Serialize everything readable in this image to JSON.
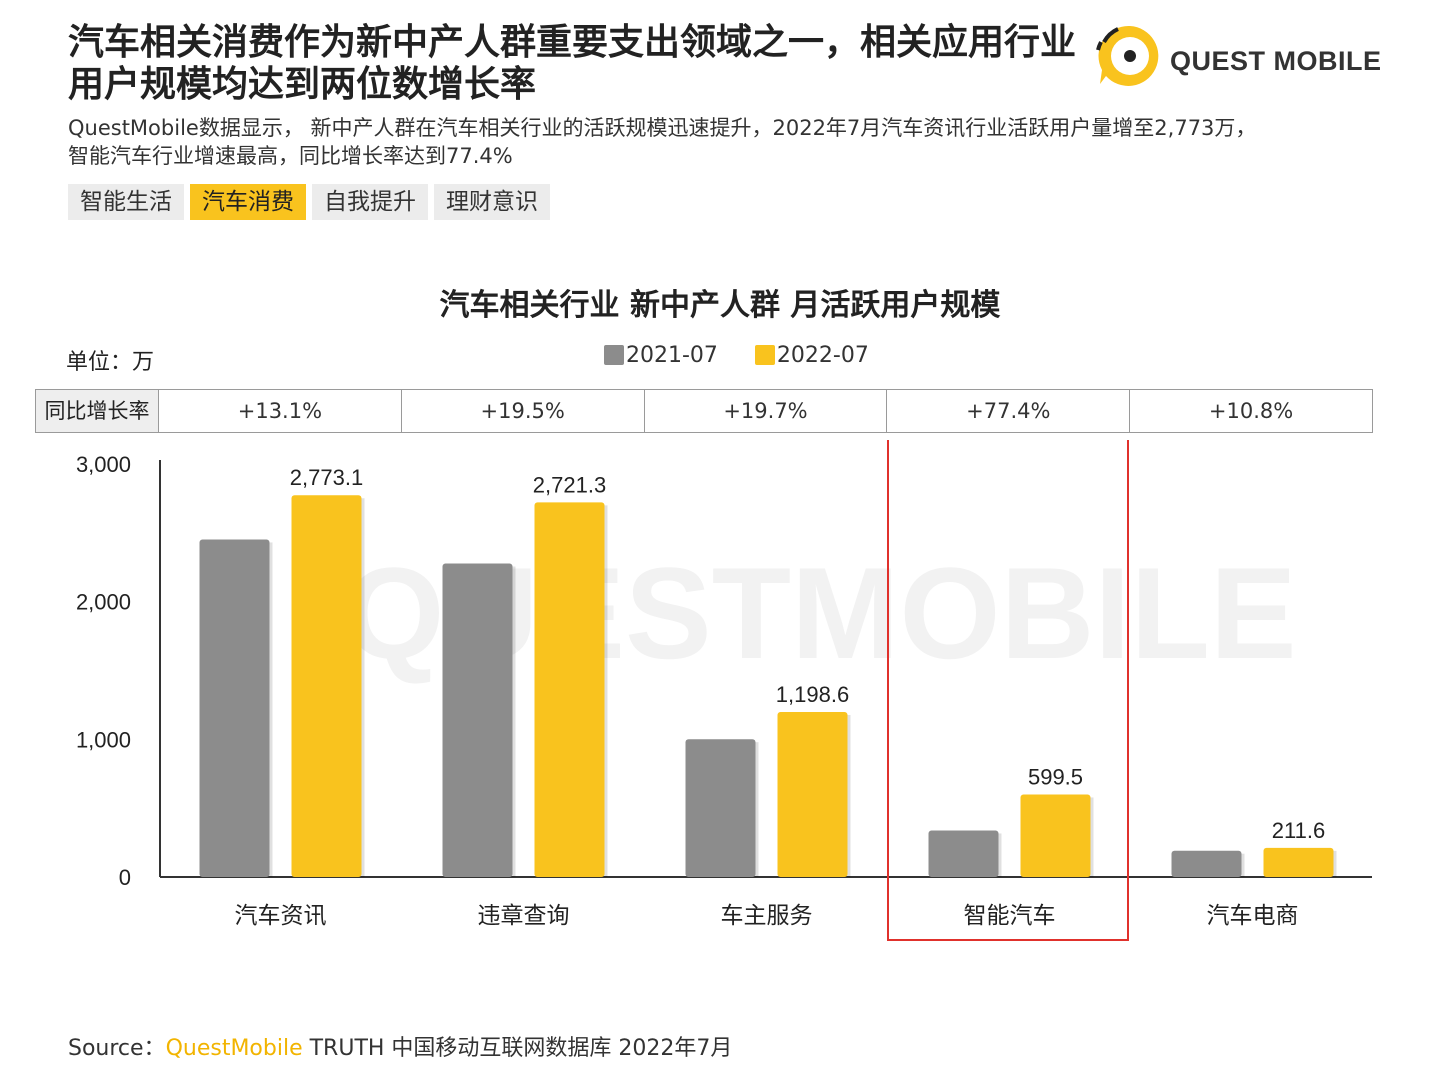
{
  "header": {
    "headline_line1": "汽车相关消费作为新中产人群重要支出领域之一，相关应用行业",
    "headline_line2": "用户规模均达到两位数增长率",
    "subtitle_line1": "QuestMobile数据显示， 新中产人群在汽车相关行业的活跃规模迅速提升，2022年7月汽车资讯行业活跃用户量增至2,773万，",
    "subtitle_line2": "智能汽车行业增速最高，同比增长率达到77.4%"
  },
  "logo": {
    "text": "QUEST MOBILE",
    "icon": "questmobile-logo-icon"
  },
  "tags": [
    {
      "label": "智能生活",
      "active": false
    },
    {
      "label": "汽车消费",
      "active": true
    },
    {
      "label": "自我提升",
      "active": false
    },
    {
      "label": "理财意识",
      "active": false
    }
  ],
  "growth_row": {
    "header": "同比增长率",
    "values": [
      "+13.1%",
      "+19.5%",
      "+19.7%",
      "+77.4%",
      "+10.8%"
    ]
  },
  "source": {
    "prefix": "Source：",
    "brand": "QuestMobile",
    "rest": " TRUTH 中国移动互联网数据库 2022年7月"
  },
  "watermark": "QUESTMOBILE",
  "colors": {
    "series_2021": "#8c8c8c",
    "series_2022": "#f9c31e",
    "highlight_box": "#e0312c"
  },
  "chart_data": {
    "type": "bar",
    "title": "汽车相关行业 新中产人群 月活跃用户规模",
    "unit_label": "单位：万",
    "categories": [
      "汽车资讯",
      "违章查询",
      "车主服务",
      "智能汽车",
      "汽车电商"
    ],
    "series": [
      {
        "name": "2021-07",
        "values": [
          2452,
          2277,
          1001,
          338,
          191
        ]
      },
      {
        "name": "2022-07",
        "values": [
          2773.1,
          2721.3,
          1198.6,
          599.5,
          211.6
        ],
        "labels": [
          "2,773.1",
          "2,721.3",
          "1,198.6",
          "599.5",
          "211.6"
        ]
      }
    ],
    "ylim": [
      0,
      3000
    ],
    "yticks": [
      0,
      1000,
      2000,
      3000
    ],
    "ytick_labels": [
      "0",
      "1,000",
      "2,000",
      "3,000"
    ],
    "highlight_category": "智能汽车",
    "legend_position": "top-center",
    "grid": false
  }
}
